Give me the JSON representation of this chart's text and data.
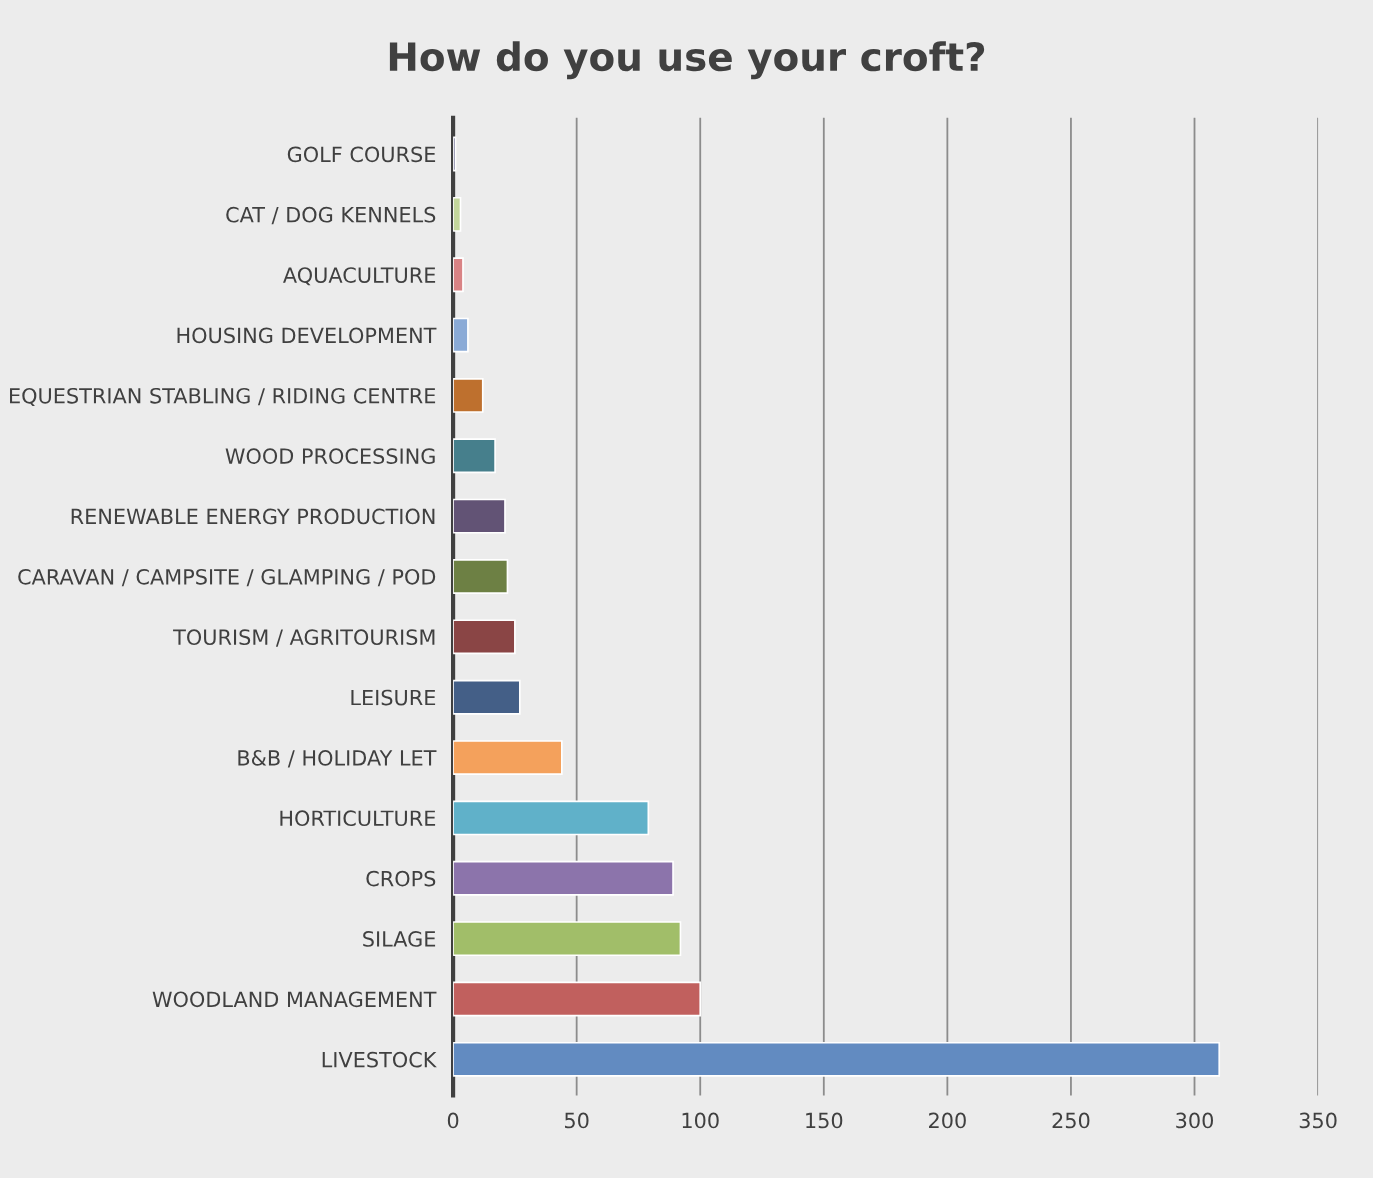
{
  "chart_data": {
    "type": "bar",
    "orientation": "horizontal",
    "title": "How do you use your croft?",
    "categories": [
      "GOLF COURSE",
      "CAT / DOG KENNELS",
      "AQUACULTURE",
      "HOUSING DEVELOPMENT",
      "EQUESTRIAN STABLING / RIDING CENTRE",
      "WOOD PROCESSING",
      "RENEWABLE ENERGY PRODUCTION",
      "CARAVAN / CAMPSITE / GLAMPING / POD",
      "TOURISM / AGRITOURISM",
      "LEISURE",
      "B&B / HOLIDAY LET",
      "HORTICULTURE",
      "CROPS",
      "SILAGE",
      "WOODLAND MANAGEMENT",
      "LIVESTOCK"
    ],
    "values": [
      1,
      3,
      4,
      6,
      12,
      17,
      21,
      22,
      25,
      27,
      44,
      79,
      89,
      92,
      100,
      310
    ],
    "colors": [
      "#7f7fa0",
      "#c3d69b",
      "#d98385",
      "#8aaad6",
      "#be702e",
      "#467f8c",
      "#625375",
      "#6d8044",
      "#8a4545",
      "#445f87",
      "#f4a15c",
      "#60b1c9",
      "#8c74ab",
      "#a1be69",
      "#c1605e",
      "#628bc1"
    ],
    "xlim": [
      0,
      350
    ],
    "xticks": [
      0,
      50,
      100,
      150,
      200,
      250,
      300,
      350
    ],
    "grid": "x"
  }
}
